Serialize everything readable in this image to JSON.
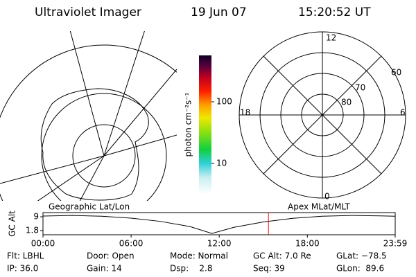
{
  "header": {
    "title": "Ultraviolet Imager",
    "date": "19 Jun 07",
    "time": "15:20:52 UT"
  },
  "colorbar": {
    "label": "photon cm⁻²s⁻¹",
    "log": true,
    "lim": [
      3.2,
      566
    ],
    "ticks": [
      10,
      100
    ]
  },
  "polar": {
    "mlt_labels": [
      "12",
      "18",
      "6",
      "0"
    ],
    "lat_labels": [
      "60",
      "70",
      "80"
    ]
  },
  "chart_data": {
    "type": "line",
    "ylabel": "GC Alt",
    "left_label": "Geographic Lat/Lon",
    "right_label": "Apex MLat/MLT",
    "x": [
      0,
      2,
      4,
      6,
      8,
      10,
      11.5,
      13,
      15,
      17,
      19,
      21,
      23,
      23.98
    ],
    "series": [
      {
        "name": "GC Alt",
        "color": "#000000",
        "values": [
          9.4,
          9.7,
          9.3,
          8.3,
          6.6,
          3.9,
          0.3,
          3.5,
          6.3,
          8.2,
          9.3,
          9.7,
          9.5,
          9.3
        ]
      }
    ],
    "xlim": [
      0,
      23.98
    ],
    "ylim": [
      -0.4,
      11.2
    ],
    "xticks": [
      {
        "value": 0,
        "label": "00:00"
      },
      {
        "value": 6,
        "label": "06:00"
      },
      {
        "value": 12,
        "label": "12:00"
      },
      {
        "value": 18,
        "label": "18:00"
      },
      {
        "value": 23.98,
        "label": "23:59"
      }
    ],
    "yticks": [
      9.0,
      1.8
    ],
    "marker_x": 15.35,
    "marker_color": "#ff0000"
  },
  "info": {
    "rows": [
      [
        "Flt: LBHL",
        "Door: Open",
        "Mode: Normal",
        "GC Alt: 7.0 Re",
        "GLat: −78.5"
      ],
      [
        "IP: 36.0",
        "Gain: 14",
        "Dsp:    2.8",
        "Seq: 39",
        "GLon:  89.6"
      ]
    ]
  }
}
